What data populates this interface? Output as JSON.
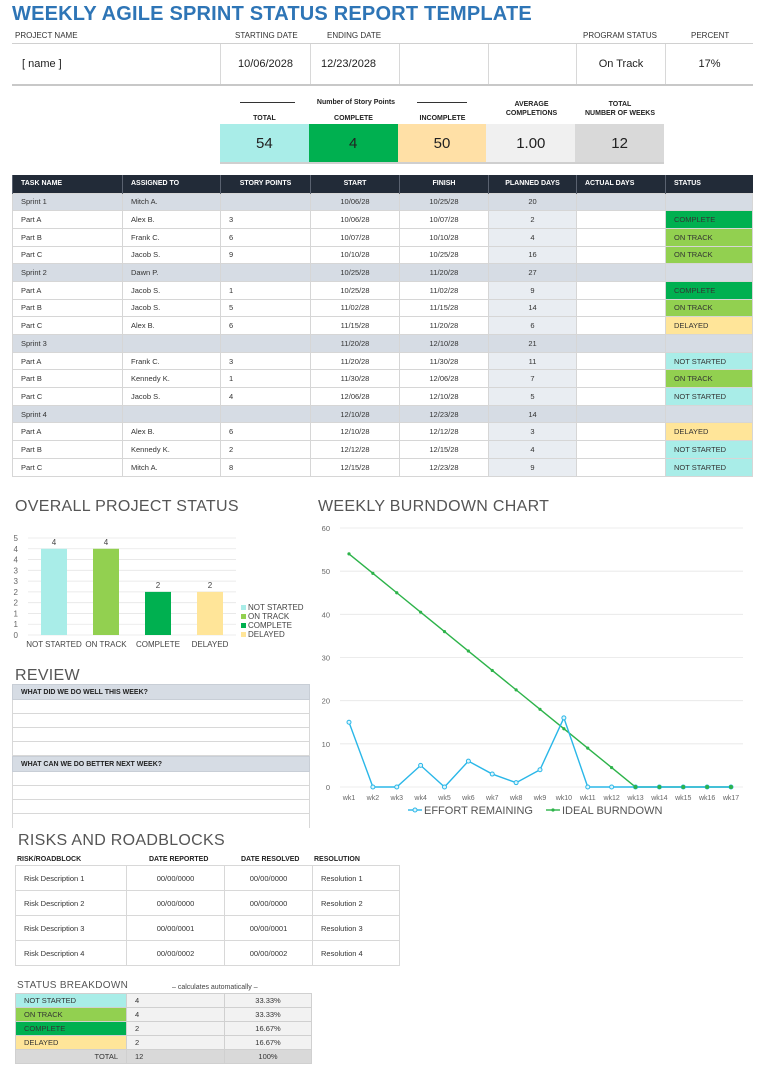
{
  "title": "WEEKLY AGILE SPRINT STATUS REPORT TEMPLATE",
  "project": {
    "labels": {
      "project_name": "PROJECT NAME",
      "starting_date": "STARTING DATE",
      "ending_date": "ENDING DATE",
      "program_status": "PROGRAM STATUS",
      "percent": "PERCENT"
    },
    "values": {
      "project_name": "[ name ]",
      "starting_date": "10/06/2028",
      "ending_date": "12/23/2028",
      "program_status": "On Track",
      "percent": "17%"
    }
  },
  "summary": {
    "group_label": "Number of Story Points",
    "labels": {
      "total": "TOTAL",
      "complete": "COMPLETE",
      "incomplete": "INCOMPLETE",
      "avg_line1": "AVERAGE",
      "avg_line2": "COMPLETIONS",
      "weeks_line1": "TOTAL",
      "weeks_line2": "NUMBER OF WEEKS"
    },
    "values": {
      "total": "54",
      "complete": "4",
      "incomplete": "50",
      "average": "1.00",
      "weeks": "12"
    },
    "colors": {
      "total": "#a9ede8",
      "complete": "#00b050",
      "incomplete": "#ffe0a6",
      "average": "#f0f0f0",
      "weeks": "#d9d9d9"
    }
  },
  "tasks": {
    "headers": [
      "TASK NAME",
      "ASSIGNED TO",
      "STORY POINTS",
      "START",
      "FINISH",
      "PLANNED DAYS",
      "ACTUAL DAYS",
      "STATUS"
    ],
    "rows": [
      {
        "task": "Sprint 1",
        "assigned": "Mitch A.",
        "points": "",
        "start": "10/06/28",
        "finish": "10/25/28",
        "planned": "20",
        "actual": "",
        "status": "",
        "sprint": true
      },
      {
        "task": "Part A",
        "assigned": "Alex B.",
        "points": "3",
        "start": "10/06/28",
        "finish": "10/07/28",
        "planned": "2",
        "actual": "",
        "status": "COMPLETE"
      },
      {
        "task": "Part B",
        "assigned": "Frank C.",
        "points": "6",
        "start": "10/07/28",
        "finish": "10/10/28",
        "planned": "4",
        "actual": "",
        "status": "ON TRACK"
      },
      {
        "task": "Part C",
        "assigned": "Jacob S.",
        "points": "9",
        "start": "10/10/28",
        "finish": "10/25/28",
        "planned": "16",
        "actual": "",
        "status": "ON TRACK"
      },
      {
        "task": "Sprint 2",
        "assigned": "Dawn P.",
        "points": "",
        "start": "10/25/28",
        "finish": "11/20/28",
        "planned": "27",
        "actual": "",
        "status": "",
        "sprint": true
      },
      {
        "task": "Part A",
        "assigned": "Jacob S.",
        "points": "1",
        "start": "10/25/28",
        "finish": "11/02/28",
        "planned": "9",
        "actual": "",
        "status": "COMPLETE"
      },
      {
        "task": "Part B",
        "assigned": "Jacob S.",
        "points": "5",
        "start": "11/02/28",
        "finish": "11/15/28",
        "planned": "14",
        "actual": "",
        "status": "ON TRACK"
      },
      {
        "task": "Part C",
        "assigned": "Alex B.",
        "points": "6",
        "start": "11/15/28",
        "finish": "11/20/28",
        "planned": "6",
        "actual": "",
        "status": "DELAYED"
      },
      {
        "task": "Sprint 3",
        "assigned": "",
        "points": "",
        "start": "11/20/28",
        "finish": "12/10/28",
        "planned": "21",
        "actual": "",
        "status": "",
        "sprint": true
      },
      {
        "task": "Part A",
        "assigned": "Frank C.",
        "points": "3",
        "start": "11/20/28",
        "finish": "11/30/28",
        "planned": "11",
        "actual": "",
        "status": "NOT STARTED"
      },
      {
        "task": "Part B",
        "assigned": "Kennedy K.",
        "points": "1",
        "start": "11/30/28",
        "finish": "12/06/28",
        "planned": "7",
        "actual": "",
        "status": "ON TRACK"
      },
      {
        "task": "Part C",
        "assigned": "Jacob S.",
        "points": "4",
        "start": "12/06/28",
        "finish": "12/10/28",
        "planned": "5",
        "actual": "",
        "status": "NOT STARTED"
      },
      {
        "task": "Sprint 4",
        "assigned": "",
        "points": "",
        "start": "12/10/28",
        "finish": "12/23/28",
        "planned": "14",
        "actual": "",
        "status": "",
        "sprint": true
      },
      {
        "task": "Part A",
        "assigned": "Alex B.",
        "points": "6",
        "start": "12/10/28",
        "finish": "12/12/28",
        "planned": "3",
        "actual": "",
        "status": "DELAYED"
      },
      {
        "task": "Part B",
        "assigned": "Kennedy K.",
        "points": "2",
        "start": "12/12/28",
        "finish": "12/15/28",
        "planned": "4",
        "actual": "",
        "status": "NOT STARTED"
      },
      {
        "task": "Part C",
        "assigned": "Mitch A.",
        "points": "8",
        "start": "12/15/28",
        "finish": "12/23/28",
        "planned": "9",
        "actual": "",
        "status": "NOT STARTED"
      }
    ]
  },
  "status_colors": {
    "NOT STARTED": "#a9ede8",
    "ON TRACK": "#92d050",
    "COMPLETE": "#00b050",
    "DELAYED": "#ffe599"
  },
  "overall_status": {
    "title": "OVERALL PROJECT STATUS"
  },
  "burndown": {
    "title": "WEEKLY BURNDOWN CHART"
  },
  "chart_data": [
    {
      "type": "bar",
      "title": "OVERALL PROJECT STATUS",
      "categories": [
        "NOT STARTED",
        "ON TRACK",
        "COMPLETE",
        "DELAYED"
      ],
      "values": [
        4,
        4,
        2,
        2
      ],
      "colors": [
        "#a9ede8",
        "#92d050",
        "#00b050",
        "#ffe599"
      ],
      "ytick_labels": [
        "0",
        "1",
        "1",
        "2",
        "2",
        "3",
        "3",
        "4",
        "4",
        "5"
      ],
      "ylim": [
        0,
        4.5
      ],
      "legend": [
        "NOT STARTED",
        "ON TRACK",
        "COMPLETE",
        "DELAYED"
      ],
      "legend_position": "right",
      "data_labels": true,
      "grid": true,
      "xlabel": "",
      "ylabel": ""
    },
    {
      "type": "line",
      "title": "WEEKLY BURNDOWN CHART",
      "x": [
        "wk1",
        "wk2",
        "wk3",
        "wk4",
        "wk5",
        "wk6",
        "wk7",
        "wk8",
        "wk9",
        "wk10",
        "wk11",
        "wk12",
        "wk13",
        "wk14",
        "wk15",
        "wk16",
        "wk17"
      ],
      "series": [
        {
          "name": "EFFORT REMAINING",
          "color": "#2ab7e8",
          "values": [
            15,
            0,
            0,
            5,
            0,
            6,
            3,
            1,
            4,
            16,
            0,
            0,
            0,
            0,
            0,
            0,
            0
          ]
        },
        {
          "name": "IDEAL BURNDOWN",
          "color": "#2db34a",
          "values": [
            54,
            49.5,
            45,
            40.5,
            36,
            31.5,
            27,
            22.5,
            18,
            13.5,
            9,
            4.5,
            0,
            0,
            0,
            0,
            0
          ]
        }
      ],
      "yticks": [
        0,
        10,
        20,
        30,
        40,
        50,
        60
      ],
      "ylim": [
        0,
        60
      ],
      "legend_position": "bottom",
      "grid": true,
      "xlabel": "",
      "ylabel": ""
    }
  ],
  "review": {
    "title": "REVIEW",
    "q1": "WHAT DID WE DO WELL THIS WEEK?",
    "q2": "WHAT CAN WE DO BETTER NEXT WEEK?"
  },
  "risks": {
    "title": "RISKS AND ROADBLOCKS",
    "headers": [
      "RISK/ROADBLOCK",
      "DATE REPORTED",
      "DATE RESOLVED",
      "RESOLUTION"
    ],
    "rows": [
      [
        "Risk Description 1",
        "00/00/0000",
        "00/00/0000",
        "Resolution 1"
      ],
      [
        "Risk Description 2",
        "00/00/0000",
        "00/00/0000",
        "Resolution 2"
      ],
      [
        "Risk Description 3",
        "00/00/0001",
        "00/00/0001",
        "Resolution 3"
      ],
      [
        "Risk Description 4",
        "00/00/0002",
        "00/00/0002",
        "Resolution 4"
      ]
    ]
  },
  "status_breakdown": {
    "title": "STATUS BREAKDOWN",
    "note": "– calculates automatically –",
    "rows": [
      {
        "name": "NOT STARTED",
        "count": "4",
        "pct": "33.33%"
      },
      {
        "name": "ON TRACK",
        "count": "4",
        "pct": "33.33%"
      },
      {
        "name": "COMPLETE",
        "count": "2",
        "pct": "16.67%"
      },
      {
        "name": "DELAYED",
        "count": "2",
        "pct": "16.67%"
      }
    ],
    "total_label": "TOTAL",
    "total_count": "12",
    "total_pct": "100%"
  }
}
